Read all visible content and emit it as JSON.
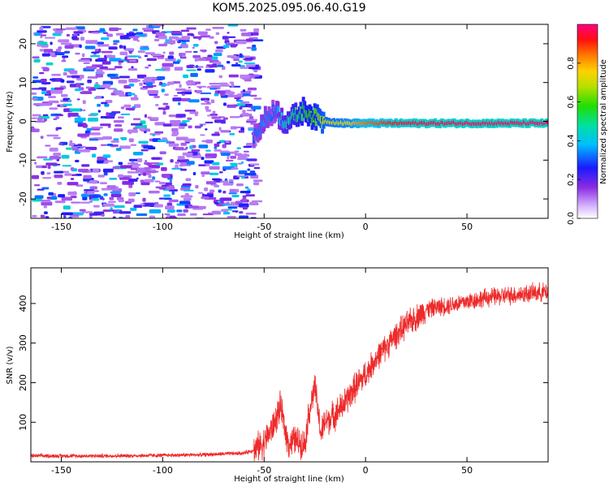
{
  "title": "KOM5.2025.095.06.40.G19",
  "colors": {
    "snr_line": "#ee2a2a",
    "axis": "#000000"
  },
  "chart_data": [
    {
      "type": "heatmap",
      "title": "KOM5.2025.095.06.40.G19",
      "xlabel": "Height of straight line (km)",
      "ylabel": "Frequency (Hz)",
      "xlim": [
        -165,
        90
      ],
      "ylim": [
        -25,
        25
      ],
      "xticks": [
        -150,
        -100,
        -50,
        0,
        50
      ],
      "yticks": [
        -20,
        -10,
        0,
        10,
        20
      ],
      "colorbar": {
        "label": "Normalized spectral amplitude",
        "range": [
          0,
          1
        ],
        "ticks": [
          "0.0",
          "0.2",
          "0.4",
          "0.6",
          "0.8"
        ],
        "tick_values": [
          0,
          0.2,
          0.4,
          0.6,
          0.8
        ],
        "colormap": "rainbow (violet-blue-cyan-green-yellow-orange-red-magenta)"
      },
      "noise_region": {
        "x": [
          -165,
          -55
        ],
        "amplitude": [
          0.1,
          0.45
        ]
      },
      "signal_ridge": [
        {
          "x": -55,
          "y": -4,
          "amplitude": 0.3
        },
        {
          "x": -50,
          "y": 0,
          "amplitude": 0.35
        },
        {
          "x": -45,
          "y": 3,
          "amplitude": 0.3
        },
        {
          "x": -40,
          "y": 0,
          "amplitude": 0.45
        },
        {
          "x": -35,
          "y": 1,
          "amplitude": 0.5
        },
        {
          "x": -30,
          "y": 3,
          "amplitude": 0.55
        },
        {
          "x": -25,
          "y": 1,
          "amplitude": 0.6
        },
        {
          "x": -20,
          "y": 0,
          "amplitude": 0.7
        },
        {
          "x": -10,
          "y": -0.5,
          "amplitude": 0.75
        },
        {
          "x": 0,
          "y": -0.5,
          "amplitude": 0.85
        },
        {
          "x": 20,
          "y": -0.5,
          "amplitude": 0.95
        },
        {
          "x": 50,
          "y": -0.5,
          "amplitude": 0.98
        },
        {
          "x": 90,
          "y": -0.5,
          "amplitude": 0.98
        }
      ]
    },
    {
      "type": "line",
      "xlabel": "Height of straight line (km)",
      "ylabel": "SNR (v/v)",
      "xlim": [
        -165,
        90
      ],
      "ylim": [
        0,
        490
      ],
      "xticks": [
        -150,
        -100,
        -50,
        0,
        50
      ],
      "yticks": [
        100,
        200,
        300,
        400
      ],
      "series": [
        {
          "x": [
            -165,
            -120,
            -80,
            -60,
            -55,
            -50,
            -45,
            -42,
            -40,
            -38,
            -35,
            -30,
            -28,
            -25,
            -22,
            -20,
            -15,
            -10,
            -5,
            0,
            5,
            10,
            15,
            20,
            25,
            30,
            40,
            50,
            60,
            70,
            80,
            90
          ],
          "y": [
            15,
            15,
            18,
            22,
            30,
            50,
            95,
            140,
            90,
            45,
            55,
            45,
            120,
            190,
            70,
            100,
            120,
            150,
            190,
            220,
            260,
            290,
            320,
            345,
            365,
            385,
            395,
            405,
            415,
            420,
            425,
            430
          ]
        }
      ]
    }
  ]
}
